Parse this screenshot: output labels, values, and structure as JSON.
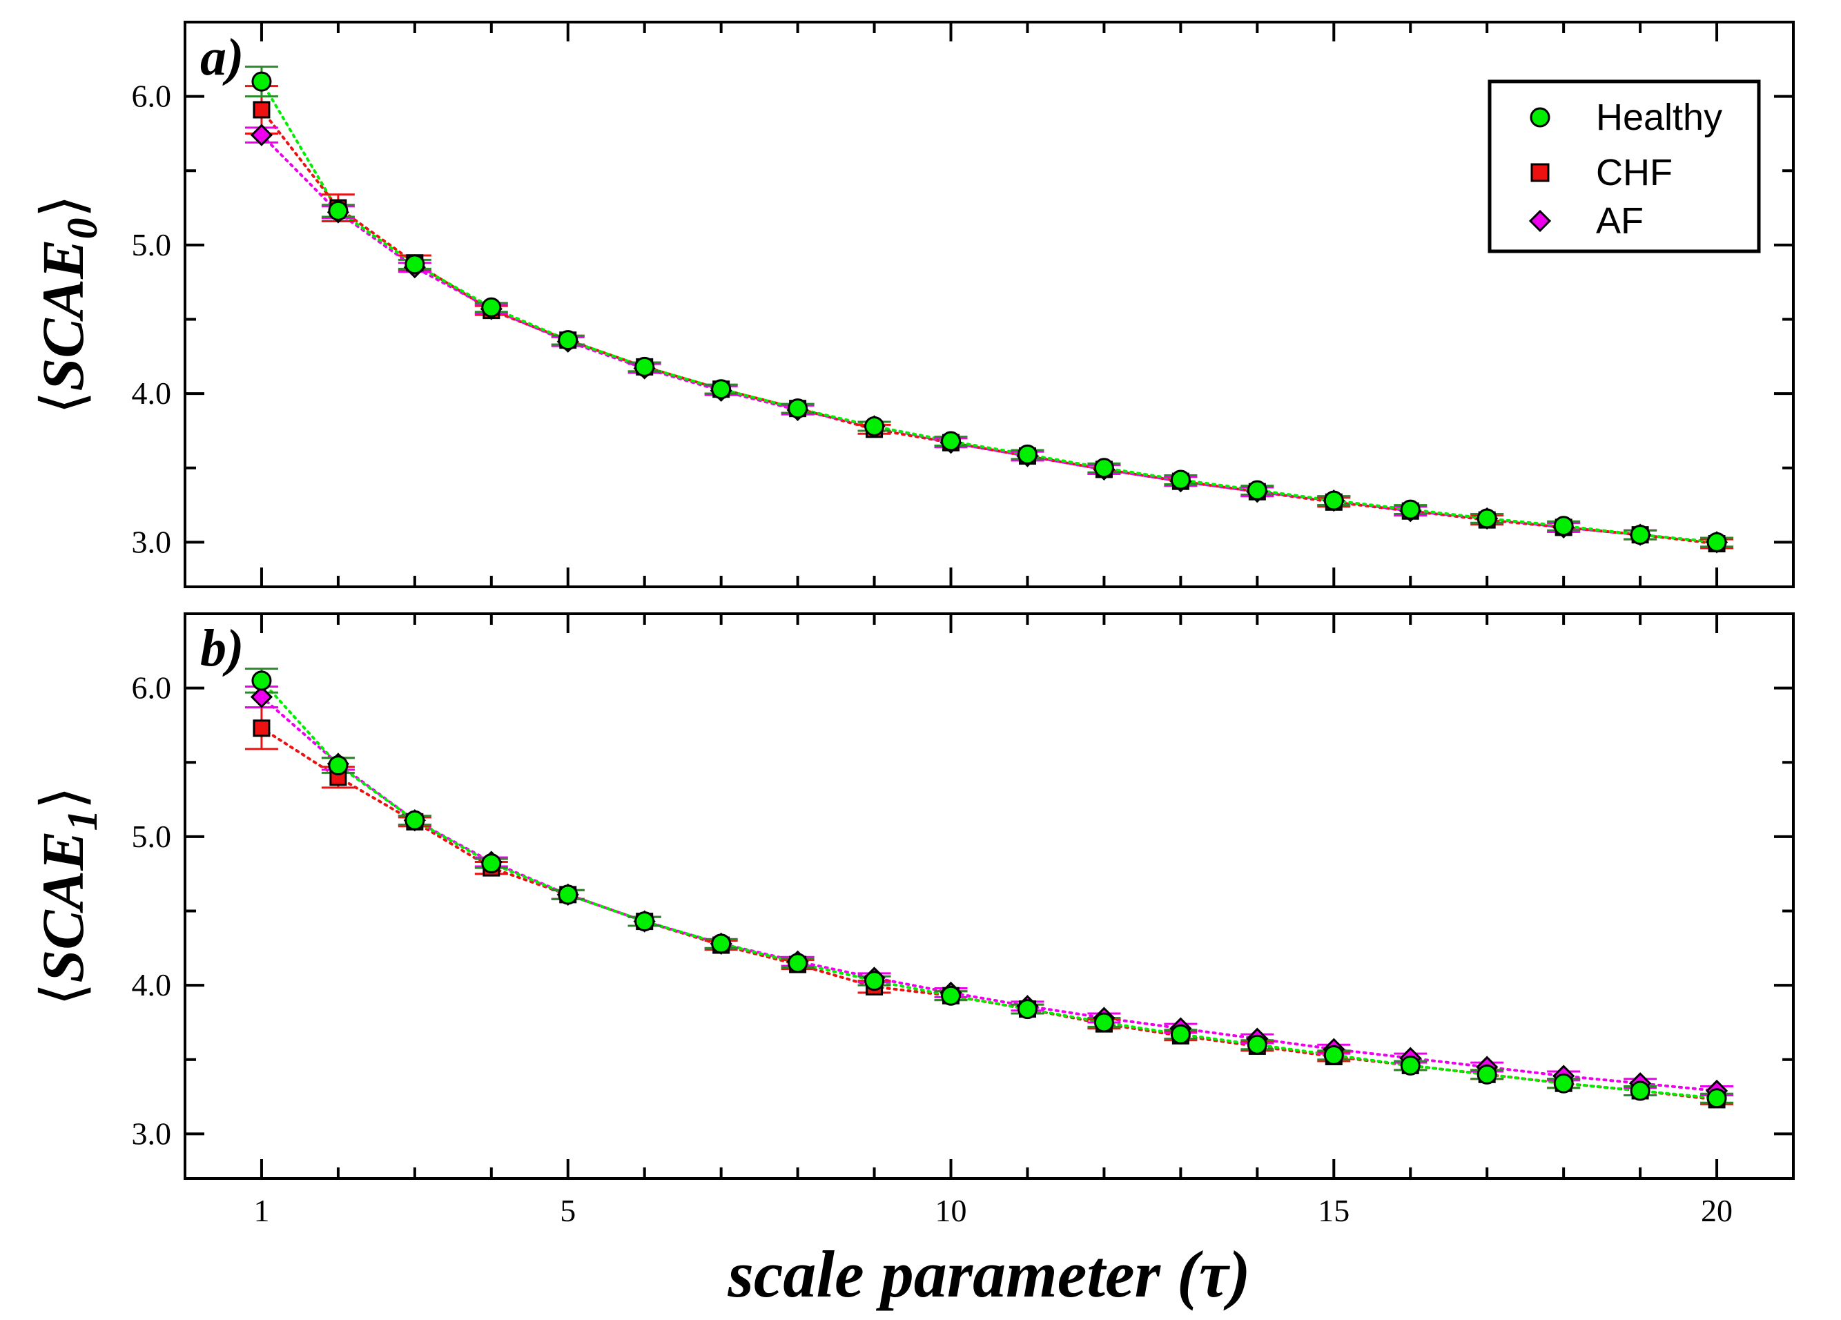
{
  "colors": {
    "Healthy": "#00ee00",
    "CHF": "#ee1111",
    "AF": "#ee00ee",
    "Healthy_err": "#2a8a2a"
  },
  "chart_data": {
    "type": "scatter",
    "xlabel": "scale parameter (τ)",
    "xlim": [
      0,
      21
    ],
    "x_ticks": [
      1,
      5,
      10,
      15,
      20
    ],
    "legend_location": "top-right",
    "grid": false,
    "panels": [
      {
        "panel_label": "a)",
        "ylabel_main": "SCAE",
        "ylabel_sub": "0",
        "ylim": [
          2.7,
          6.5
        ],
        "y_ticks": [
          "3.0",
          "4.0",
          "5.0",
          "6.0"
        ],
        "x": [
          1,
          2,
          3,
          4,
          5,
          6,
          7,
          8,
          9,
          10,
          11,
          12,
          13,
          14,
          15,
          16,
          17,
          18,
          19,
          20
        ],
        "series": [
          {
            "name": "Healthy",
            "marker": "circle",
            "line": "dotted",
            "values": [
              6.1,
              5.23,
              4.87,
              4.58,
              4.36,
              4.18,
              4.03,
              3.9,
              3.78,
              3.68,
              3.59,
              3.5,
              3.42,
              3.35,
              3.28,
              3.22,
              3.16,
              3.11,
              3.05,
              3.0
            ],
            "errors": [
              0.1,
              0.04,
              0.03,
              0.03,
              0.03,
              0.03,
              0.03,
              0.03,
              0.03,
              0.03,
              0.03,
              0.03,
              0.03,
              0.03,
              0.03,
              0.03,
              0.03,
              0.03,
              0.03,
              0.03
            ]
          },
          {
            "name": "CHF",
            "marker": "square",
            "line": "dotted",
            "values": [
              5.91,
              5.25,
              4.88,
              4.56,
              4.36,
              4.18,
              4.03,
              3.9,
              3.76,
              3.67,
              3.58,
              3.49,
              3.41,
              3.34,
              3.27,
              3.21,
              3.15,
              3.1,
              3.05,
              2.99
            ],
            "errors": [
              0.16,
              0.09,
              0.05,
              0.03,
              0.03,
              0.03,
              0.03,
              0.03,
              0.03,
              0.03,
              0.03,
              0.03,
              0.03,
              0.03,
              0.03,
              0.03,
              0.03,
              0.03,
              0.03,
              0.03
            ]
          },
          {
            "name": "AF",
            "marker": "diamond",
            "line": "dotted",
            "values": [
              5.74,
              5.22,
              4.85,
              4.57,
              4.35,
              4.17,
              4.02,
              3.89,
              3.78,
              3.67,
              3.58,
              3.49,
              3.41,
              3.34,
              3.28,
              3.21,
              3.16,
              3.1,
              3.05,
              3.0
            ],
            "errors": [
              0.05,
              0.04,
              0.03,
              0.03,
              0.03,
              0.03,
              0.03,
              0.03,
              0.03,
              0.03,
              0.03,
              0.03,
              0.03,
              0.03,
              0.03,
              0.03,
              0.03,
              0.03,
              0.03,
              0.03
            ]
          }
        ]
      },
      {
        "panel_label": "b)",
        "ylabel_main": "SCAE",
        "ylabel_sub": "1",
        "ylim": [
          2.7,
          6.5
        ],
        "y_ticks": [
          "3.0",
          "4.0",
          "5.0",
          "6.0"
        ],
        "x": [
          1,
          2,
          3,
          4,
          5,
          6,
          7,
          8,
          9,
          10,
          11,
          12,
          13,
          14,
          15,
          16,
          17,
          18,
          19,
          20
        ],
        "series": [
          {
            "name": "Healthy",
            "marker": "circle",
            "line": "dotted",
            "values": [
              6.05,
              5.48,
              5.11,
              4.82,
              4.61,
              4.43,
              4.28,
              4.15,
              4.03,
              3.93,
              3.84,
              3.75,
              3.67,
              3.6,
              3.53,
              3.46,
              3.4,
              3.34,
              3.29,
              3.24
            ],
            "errors": [
              0.08,
              0.05,
              0.03,
              0.03,
              0.03,
              0.03,
              0.03,
              0.03,
              0.03,
              0.03,
              0.03,
              0.03,
              0.03,
              0.03,
              0.03,
              0.03,
              0.03,
              0.03,
              0.03,
              0.03
            ]
          },
          {
            "name": "CHF",
            "marker": "square",
            "line": "dotted",
            "values": [
              5.73,
              5.4,
              5.1,
              4.79,
              4.61,
              4.43,
              4.27,
              4.14,
              3.99,
              3.93,
              3.84,
              3.74,
              3.66,
              3.59,
              3.52,
              3.46,
              3.4,
              3.34,
              3.29,
              3.23
            ],
            "errors": [
              0.14,
              0.07,
              0.03,
              0.04,
              0.03,
              0.03,
              0.03,
              0.03,
              0.04,
              0.03,
              0.03,
              0.03,
              0.03,
              0.03,
              0.03,
              0.03,
              0.03,
              0.03,
              0.03,
              0.03
            ]
          },
          {
            "name": "AF",
            "marker": "diamond",
            "line": "dotted",
            "values": [
              5.94,
              5.49,
              5.11,
              4.83,
              4.61,
              4.43,
              4.28,
              4.16,
              4.05,
              3.95,
              3.86,
              3.78,
              3.71,
              3.64,
              3.57,
              3.51,
              3.45,
              3.39,
              3.34,
              3.29
            ],
            "errors": [
              0.07,
              0.04,
              0.03,
              0.03,
              0.03,
              0.03,
              0.03,
              0.03,
              0.03,
              0.03,
              0.03,
              0.03,
              0.03,
              0.03,
              0.03,
              0.03,
              0.03,
              0.03,
              0.03,
              0.03
            ]
          }
        ]
      }
    ]
  }
}
